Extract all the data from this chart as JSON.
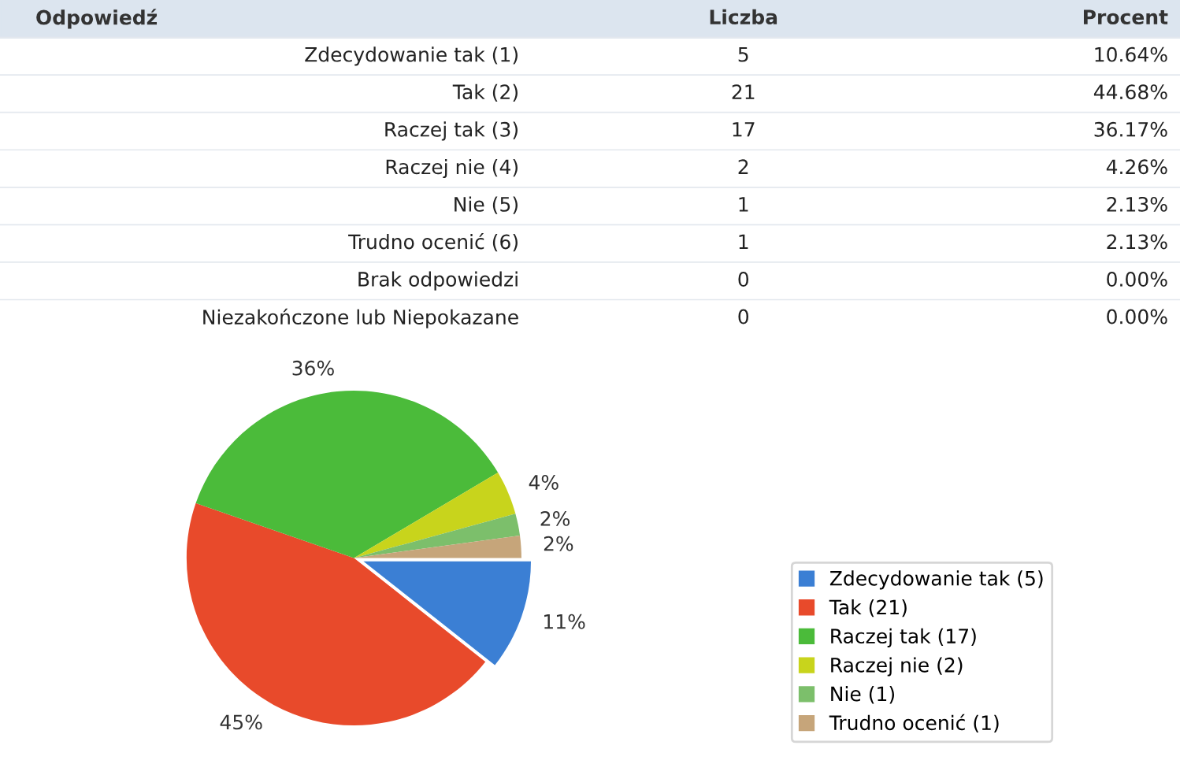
{
  "chart_data": [
    {
      "type": "other",
      "xlabel": "Odpowiedź",
      "categories": [
        "Zdecydowanie tak (1)",
        "Tak (2)",
        "Raczej tak (3)",
        "Raczej nie (4)",
        "Nie (5)",
        "Trudno ocenić (6)",
        "Brak odpowiedzi",
        "Niezakończone lub Niepokazane"
      ],
      "series": [
        {
          "name": "Liczba",
          "values": [
            5,
            21,
            17,
            2,
            1,
            1,
            0,
            0
          ],
          "value_labels": [
            "5",
            "21",
            "17",
            "2",
            "1",
            "1",
            "0",
            "0"
          ]
        },
        {
          "name": "Procent",
          "values": [
            10.64,
            44.68,
            36.17,
            4.26,
            2.13,
            2.13,
            0,
            0
          ],
          "value_labels": [
            "10.64%",
            "44.68%",
            "36.17%",
            "4.26%",
            "2.13%",
            "2.13%",
            "0.00%",
            "0.00%"
          ]
        }
      ]
    },
    {
      "type": "pie",
      "categories": [
        "Zdecydowanie tak (5)",
        "Tak (21)",
        "Raczej tak (17)",
        "Raczej nie (2)",
        "Nie (1)",
        "Trudno ocenić (1)"
      ],
      "values": [
        10.64,
        44.68,
        36.17,
        4.26,
        2.13,
        2.13
      ],
      "value_labels": [
        "11%",
        "45%",
        "36%",
        "4%",
        "2%",
        "2%"
      ],
      "colors": [
        "#3b7fd4",
        "#e84a2b",
        "#4bbb3a",
        "#c8d41c",
        "#7cbf6b",
        "#c6a57a"
      ],
      "legend": "bottom right"
    }
  ]
}
